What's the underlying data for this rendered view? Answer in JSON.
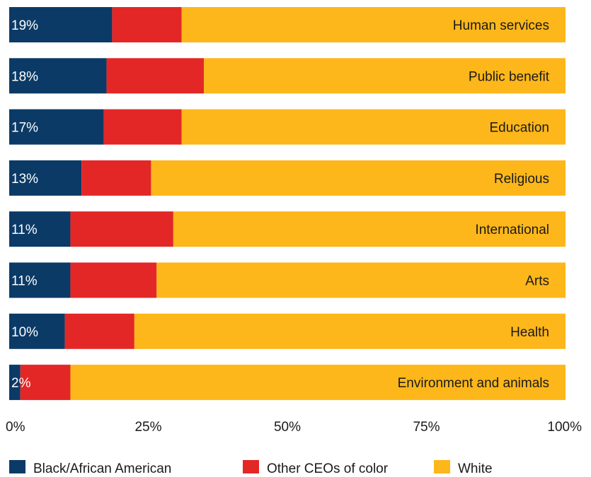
{
  "chart_data": {
    "type": "bar",
    "orientation": "horizontal",
    "stacked": true,
    "categories": [
      "Human services",
      "Public benefit",
      "Education",
      "Religious",
      "International",
      "Arts",
      "Health",
      "Environment and animals"
    ],
    "series": [
      {
        "name": "Black/African American",
        "color": "#0b3a66",
        "values": [
          18.5,
          17.5,
          17,
          13,
          11,
          11,
          10,
          2
        ],
        "labels": [
          "19%",
          "18%",
          "17%",
          "13%",
          "11%",
          "11%",
          "10%",
          "2%"
        ]
      },
      {
        "name": "Other CEOs of color",
        "color": "#e32726",
        "values": [
          12.5,
          17.5,
          14,
          12.5,
          18.5,
          15.5,
          12.5,
          9
        ]
      },
      {
        "name": "White",
        "color": "#fdb71a",
        "values": [
          69,
          65,
          69,
          74.5,
          70.5,
          73.5,
          77.5,
          89
        ]
      }
    ],
    "xticks": [
      "0%",
      "25%",
      "50%",
      "75%",
      "100%"
    ],
    "xlim": [
      0,
      100
    ],
    "grid": false,
    "legend": "bottom",
    "title": "",
    "xlabel": "",
    "ylabel": ""
  }
}
